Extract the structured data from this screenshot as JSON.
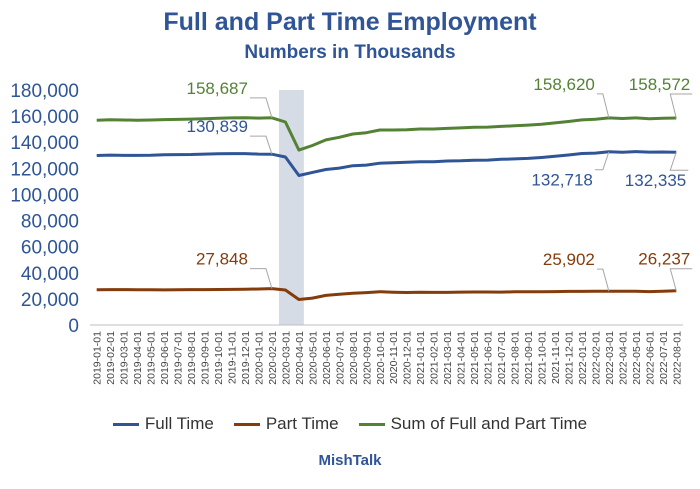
{
  "title": "Full and Part Time Employment",
  "subtitle": "Numbers in Thousands",
  "credit": "MishTalk",
  "colors": {
    "full_time": "#2f5597",
    "part_time": "#843c0c",
    "sum": "#548235",
    "axis_text": "#2f5597",
    "recession": "#d6dce5"
  },
  "chart_data": {
    "type": "line",
    "x": [
      "2019-01-01",
      "2019-02-01",
      "2019-03-01",
      "2019-04-01",
      "2019-05-01",
      "2019-06-01",
      "2019-07-01",
      "2019-08-01",
      "2019-09-01",
      "2019-10-01",
      "2019-11-01",
      "2019-12-01",
      "2020-01-01",
      "2020-02-01",
      "2020-03-01",
      "2020-04-01",
      "2020-05-01",
      "2020-06-01",
      "2020-07-01",
      "2020-08-01",
      "2020-09-01",
      "2020-10-01",
      "2020-11-01",
      "2020-12-01",
      "2021-01-01",
      "2021-02-01",
      "2021-03-01",
      "2021-04-01",
      "2021-05-01",
      "2021-06-01",
      "2021-07-01",
      "2021-08-01",
      "2021-09-01",
      "2021-10-01",
      "2021-11-01",
      "2021-12-01",
      "2022-01-01",
      "2022-02-01",
      "2022-03-01",
      "2022-04-01",
      "2022-05-01",
      "2022-06-01",
      "2022-07-01",
      "2022-08-01"
    ],
    "ylim": [
      0,
      180000
    ],
    "yticks": [
      0,
      20000,
      40000,
      60000,
      80000,
      100000,
      120000,
      140000,
      160000,
      180000
    ],
    "ytick_labels": [
      "0",
      "20,000",
      "40,000",
      "60,000",
      "80,000",
      "100,000",
      "120,000",
      "140,000",
      "160,000",
      "180,000"
    ],
    "shaded_region": [
      "2020-02-01",
      "2020-04-01"
    ],
    "series": [
      {
        "name": "Full Time",
        "color": "#2f5597",
        "values": [
          129800,
          130100,
          129900,
          129900,
          130000,
          130400,
          130500,
          130600,
          130900,
          131100,
          131300,
          131300,
          130900,
          130839,
          128700,
          114500,
          116900,
          119100,
          120200,
          122000,
          122500,
          123900,
          124300,
          124700,
          125000,
          125100,
          125600,
          125800,
          126200,
          126300,
          126900,
          127200,
          127600,
          128300,
          129200,
          130200,
          131400,
          131700,
          132718,
          132300,
          132800,
          132400,
          132500,
          132335
        ]
      },
      {
        "name": "Part Time",
        "color": "#843c0c",
        "values": [
          27000,
          27100,
          27100,
          27000,
          27000,
          26900,
          27000,
          27100,
          27100,
          27200,
          27300,
          27400,
          27600,
          27848,
          26800,
          19500,
          20600,
          22700,
          23600,
          24300,
          24800,
          25500,
          25100,
          24900,
          25100,
          25000,
          25000,
          25200,
          25300,
          25300,
          25200,
          25400,
          25500,
          25400,
          25600,
          25700,
          25700,
          25900,
          25902,
          25900,
          25800,
          25600,
          25900,
          26237
        ]
      },
      {
        "name": "Sum of Full and Part Time",
        "color": "#548235",
        "values": [
          156800,
          157200,
          157000,
          156900,
          157000,
          157300,
          157500,
          157700,
          158000,
          158300,
          158600,
          158700,
          158500,
          158687,
          155500,
          134000,
          137500,
          141800,
          143800,
          146300,
          147300,
          149400,
          149400,
          149600,
          150100,
          150100,
          150600,
          151000,
          151500,
          151600,
          152100,
          152600,
          153100,
          153700,
          154800,
          155900,
          157100,
          157600,
          158620,
          158200,
          158600,
          158000,
          158400,
          158572
        ]
      }
    ],
    "annotations": [
      {
        "text": "158,687",
        "series": "Sum of Full and Part Time",
        "index": 13,
        "color": "#548235"
      },
      {
        "text": "158,620",
        "series": "Sum of Full and Part Time",
        "index": 38,
        "color": "#548235"
      },
      {
        "text": "158,572",
        "series": "Sum of Full and Part Time",
        "index": 43,
        "color": "#548235"
      },
      {
        "text": "130,839",
        "series": "Full Time",
        "index": 13,
        "color": "#2f5597"
      },
      {
        "text": "132,718",
        "series": "Full Time",
        "index": 38,
        "color": "#2f5597"
      },
      {
        "text": "132,335",
        "series": "Full Time",
        "index": 43,
        "color": "#2f5597"
      },
      {
        "text": "27,848",
        "series": "Part Time",
        "index": 13,
        "color": "#843c0c"
      },
      {
        "text": "25,902",
        "series": "Part Time",
        "index": 38,
        "color": "#843c0c"
      },
      {
        "text": "26,237",
        "series": "Part Time",
        "index": 43,
        "color": "#843c0c"
      }
    ]
  }
}
